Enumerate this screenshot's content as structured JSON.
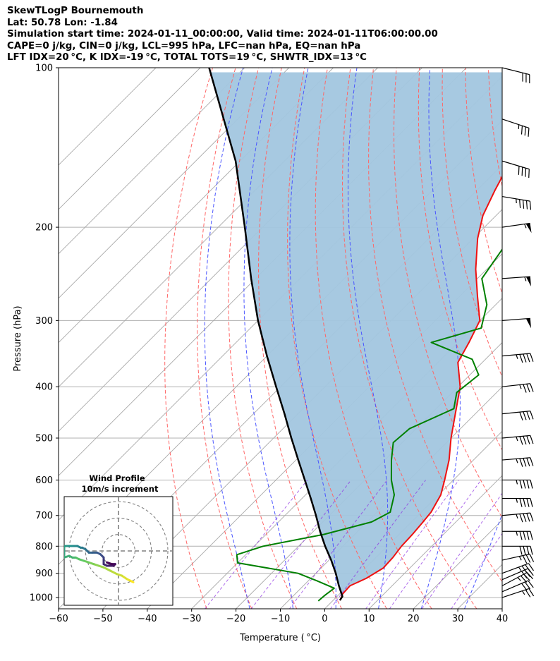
{
  "header": {
    "line1": "SkewTLogP Bournemouth",
    "line2": "Lat: 50.78   Lon: -1.84",
    "line3": "Simulation start time: 2024-01-11_00:00:00, Valid time: 2024-01-11T06:00:00.00",
    "line4": "CAPE=0 j/kg, CIN=0 j/kg, LCL=995 hPa, LFC=nan hPa, EQ=nan hPa",
    "line5": "LFT IDX=20 °C, K IDX=-19 °C, TOTAL TOTS=19 °C, SHWTR_IDX=13 °C"
  },
  "chart_data": {
    "type": "line",
    "skew_log_p": true,
    "xlabel": "Temperature ($^\\circ$C)",
    "xlabel_text": "Temperature ( °C)",
    "ylabel": "Pressure (hPa)",
    "xlim": [
      -60,
      40
    ],
    "ylim": [
      1050,
      100
    ],
    "xticks": [
      -60,
      -50,
      -40,
      -30,
      -20,
      -10,
      0,
      10,
      20,
      30,
      40
    ],
    "xtick_labels": [
      "−60",
      "−50",
      "−40",
      "−30",
      "−20",
      "−10",
      "0",
      "10",
      "20",
      "30",
      "40"
    ],
    "yticks": [
      100,
      200,
      300,
      400,
      500,
      600,
      700,
      800,
      900,
      1000
    ],
    "ytick_labels": [
      "100",
      "200",
      "300",
      "400",
      "500",
      "600",
      "700",
      "800",
      "900",
      "1000"
    ],
    "grid": true,
    "series": [
      {
        "role": "temperature",
        "color": "#ee1111",
        "points": [
          [
            1012,
            1.5
          ],
          [
            1000,
            1.2
          ],
          [
            985,
            0.7
          ],
          [
            950,
            0.5
          ],
          [
            920,
            2.5
          ],
          [
            880,
            4
          ],
          [
            840,
            3.8
          ],
          [
            800,
            3.2
          ],
          [
            760,
            3
          ],
          [
            720,
            2.6
          ],
          [
            690,
            2.2
          ],
          [
            640,
            0.5
          ],
          [
            600,
            -2
          ],
          [
            550,
            -5.5
          ],
          [
            500,
            -10
          ],
          [
            450,
            -14.5
          ],
          [
            400,
            -19.5
          ],
          [
            360,
            -25.5
          ],
          [
            330,
            -27.5
          ],
          [
            300,
            -30
          ],
          [
            270,
            -36
          ],
          [
            240,
            -42.5
          ],
          [
            210,
            -49
          ],
          [
            190,
            -53
          ],
          [
            170,
            -56
          ],
          [
            150,
            -59
          ],
          [
            130,
            -62
          ],
          [
            110,
            -65
          ],
          [
            100,
            -66
          ]
        ]
      },
      {
        "role": "dewpoint",
        "color": "#008000",
        "points": [
          [
            1015,
            -3.2
          ],
          [
            1000,
            -3.1
          ],
          [
            990,
            -3
          ],
          [
            960,
            -2.5
          ],
          [
            930,
            -8
          ],
          [
            900,
            -14
          ],
          [
            860,
            -30
          ],
          [
            830,
            -32
          ],
          [
            800,
            -28
          ],
          [
            760,
            -17
          ],
          [
            720,
            -9
          ],
          [
            690,
            -7
          ],
          [
            640,
            -10
          ],
          [
            600,
            -14
          ],
          [
            550,
            -18.5
          ],
          [
            510,
            -22
          ],
          [
            480,
            -21.5
          ],
          [
            440,
            -16
          ],
          [
            410,
            -19
          ],
          [
            380,
            -18
          ],
          [
            355,
            -23
          ],
          [
            330,
            -36
          ],
          [
            310,
            -28
          ],
          [
            280,
            -32
          ],
          [
            250,
            -39
          ],
          [
            220,
            -41
          ],
          [
            200,
            -40
          ],
          [
            180,
            -41
          ],
          [
            160,
            -45
          ],
          [
            140,
            -54
          ],
          [
            120,
            -60
          ],
          [
            100,
            -66
          ]
        ]
      },
      {
        "role": "parcel",
        "color": "#000000",
        "points": [
          [
            1012,
            1.5
          ],
          [
            995,
            1.2
          ],
          [
            950,
            -2
          ],
          [
            900,
            -5.5
          ],
          [
            850,
            -9.5
          ],
          [
            800,
            -14
          ],
          [
            750,
            -18.5
          ],
          [
            700,
            -23
          ],
          [
            650,
            -28
          ],
          [
            600,
            -33.5
          ],
          [
            550,
            -39.5
          ],
          [
            500,
            -46
          ],
          [
            450,
            -53
          ],
          [
            400,
            -61
          ],
          [
            350,
            -70
          ],
          [
            300,
            -80
          ],
          [
            250,
            -91
          ],
          [
            200,
            -104
          ],
          [
            150,
            -121
          ],
          [
            100,
            -148
          ]
        ]
      }
    ],
    "shaded_region": {
      "between": [
        "temperature",
        "parcel"
      ],
      "color": "#a2c6df"
    },
    "dry_adiabats_theta_C": [
      -30,
      -20,
      -10,
      0,
      10,
      20,
      30,
      40,
      50,
      60,
      70,
      80,
      90,
      100,
      110,
      120,
      130,
      140,
      150,
      160,
      170,
      180,
      190,
      200
    ],
    "moist_adiabats_theta_w_C": [
      -20,
      -10,
      0,
      10,
      20,
      30,
      40
    ],
    "mixing_ratio_lines": [
      0.4,
      1,
      2,
      4,
      7,
      10,
      16,
      24
    ],
    "wind_barbs": {
      "pressure_hpa": [
        1000,
        975,
        950,
        925,
        900,
        850,
        800,
        750,
        700,
        650,
        600,
        550,
        500,
        450,
        400,
        350,
        300,
        250,
        200,
        175,
        150,
        125,
        100
      ],
      "u_ms": [
        -12,
        -14,
        -15,
        -14,
        -16,
        -18,
        -20,
        -22,
        -22,
        -22,
        -22,
        -24,
        -22,
        -20,
        -18,
        -22,
        -26,
        -28,
        -28,
        -24,
        -20,
        -18,
        -16
      ],
      "v_ms": [
        -4,
        -6,
        -8,
        -6,
        -6,
        -4,
        0,
        0,
        -2,
        0,
        0,
        -2,
        -2,
        -2,
        -2,
        -2,
        -2,
        -2,
        -4,
        4,
        6,
        6,
        4
      ]
    },
    "inset": {
      "title": "Wind Profile",
      "subtitle": "10m/s increment",
      "ring_radii_ms": [
        10,
        20,
        30
      ],
      "limit_ms": 33,
      "hodograph": [
        [
          9,
          -19
        ],
        [
          7,
          -18
        ],
        [
          5,
          -17
        ],
        [
          2,
          -15
        ],
        [
          -1,
          -14
        ],
        [
          -5,
          -12
        ],
        [
          -9,
          -10
        ],
        [
          -12,
          -9
        ],
        [
          -15,
          -8
        ],
        [
          -18,
          -7
        ],
        [
          -21,
          -6
        ],
        [
          -24,
          -5
        ],
        [
          -26,
          -4
        ],
        [
          -27,
          -4
        ],
        [
          -28,
          -4
        ],
        [
          -30,
          -3
        ],
        [
          -33,
          -4
        ],
        [
          -33,
          -2
        ],
        [
          -33,
          3
        ],
        [
          -32,
          3
        ],
        [
          -30,
          3
        ],
        [
          -27,
          3
        ],
        [
          -25,
          3
        ],
        [
          -23,
          2
        ],
        [
          -22,
          2
        ],
        [
          -20,
          1
        ],
        [
          -19,
          0
        ],
        [
          -18,
          -1
        ],
        [
          -16,
          -1
        ],
        [
          -13,
          -1
        ],
        [
          -11,
          -2
        ],
        [
          -10,
          -3
        ],
        [
          -9,
          -4
        ],
        [
          -9,
          -5
        ],
        [
          -9,
          -6
        ],
        [
          -9,
          -8
        ],
        [
          -7,
          -9
        ],
        [
          -5,
          -9
        ],
        [
          -3,
          -9
        ],
        [
          -2,
          -8
        ],
        [
          -4,
          -8
        ],
        [
          -7,
          -7
        ]
      ]
    }
  },
  "colors": {
    "temperature": "#ee1111",
    "dewpoint": "#008000",
    "parcel": "#000000",
    "shade": "#a2c6df",
    "dry_adiabat": "#ff6666",
    "moist_adiabat": "#4a55ff",
    "mixing_ratio": "#8a2be2",
    "isotherm": "#a9a9a9",
    "grid": "#b0b0b0"
  }
}
